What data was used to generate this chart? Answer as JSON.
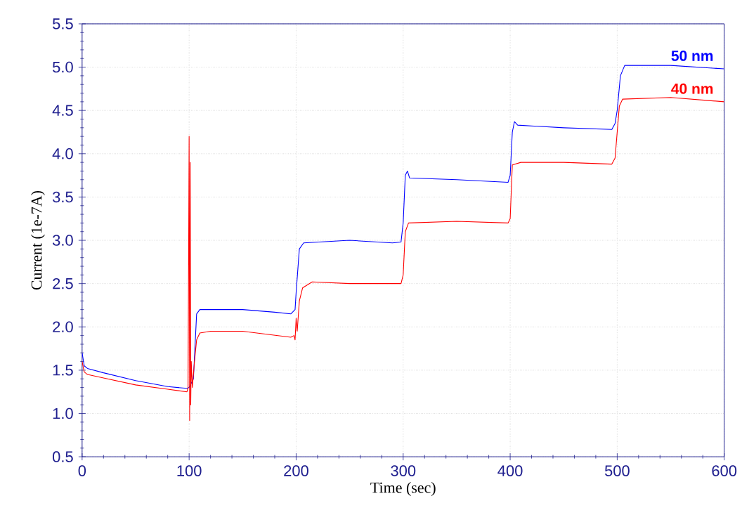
{
  "chart_data": {
    "type": "line",
    "xlabel": "Time (sec)",
    "ylabel": "Current (1e-7A)",
    "xlim": [
      0,
      600
    ],
    "ylim": [
      0.5,
      5.5
    ],
    "xticks": [
      0,
      100,
      200,
      300,
      400,
      500,
      600
    ],
    "yticks": [
      0.5,
      {
        "value": 1,
        "label": "1.0"
      },
      1.5,
      {
        "value": 2,
        "label": "2.0"
      },
      2.5,
      {
        "value": 3,
        "label": "3.0"
      },
      3.5,
      {
        "value": 4,
        "label": "4.0"
      },
      4.5,
      {
        "value": 5,
        "label": "5.0"
      },
      5.5
    ],
    "grid": true,
    "series": [
      {
        "name": "50 nm",
        "color": "#0000ff",
        "x": [
          0,
          2,
          5,
          20,
          50,
          80,
          98,
          100,
          101,
          102,
          104,
          107,
          110,
          150,
          180,
          195,
          199,
          200,
          203,
          207,
          250,
          290,
          298,
          300,
          302,
          304,
          306,
          350,
          398,
          400,
          402,
          404,
          407,
          450,
          495,
          498,
          500,
          503,
          507,
          550,
          600
        ],
        "values": [
          1.7,
          1.55,
          1.52,
          1.47,
          1.38,
          1.31,
          1.29,
          1.3,
          null,
          null,
          1.4,
          2.15,
          2.2,
          2.2,
          2.17,
          2.15,
          2.2,
          2.4,
          2.9,
          2.97,
          3.0,
          2.97,
          2.98,
          3.2,
          3.75,
          3.8,
          3.72,
          3.7,
          3.67,
          3.75,
          4.25,
          4.37,
          4.33,
          4.3,
          4.28,
          4.35,
          4.5,
          4.9,
          5.02,
          5.02,
          4.98
        ]
      },
      {
        "name": "40 nm",
        "color": "#ff0000",
        "x": [
          0,
          2,
          5,
          20,
          50,
          80,
          98,
          99,
          100,
          100.5,
          101,
          101.5,
          102,
          103,
          105,
          107,
          110,
          120,
          150,
          195,
          198,
          199,
          200,
          201,
          203,
          206,
          215,
          250,
          298,
          300,
          302,
          305,
          350,
          398,
          400,
          402,
          410,
          450,
          495,
          498,
          502,
          505,
          550,
          600
        ],
        "values": [
          1.6,
          1.48,
          1.45,
          1.41,
          1.33,
          1.28,
          1.25,
          1.3,
          4.2,
          0.92,
          3.9,
          1.1,
          1.6,
          1.3,
          1.6,
          1.85,
          1.93,
          1.95,
          1.95,
          1.88,
          1.9,
          1.85,
          2.1,
          1.95,
          2.3,
          2.45,
          2.52,
          2.5,
          2.5,
          2.6,
          3.1,
          3.2,
          3.22,
          3.2,
          3.25,
          3.87,
          3.9,
          3.9,
          3.88,
          3.95,
          4.55,
          4.63,
          4.65,
          4.6
        ]
      }
    ]
  }
}
